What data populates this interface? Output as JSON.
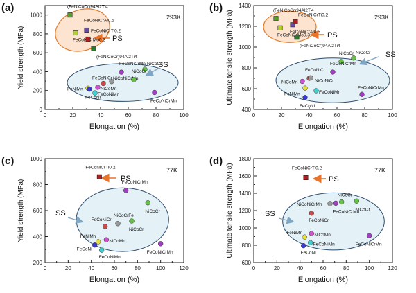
{
  "colors": {
    "ss_fill": "#e4f2f8",
    "ss_stroke": "#2c4a6a",
    "ps_fill": "#fde4d0",
    "ps_stroke": "#e07a2a",
    "arrow": "#e8732a",
    "ss_arrow": "#7fa6c2"
  },
  "chart_data": [
    {
      "panel": "(a)",
      "type": "scatter",
      "temperature": "293K",
      "xlabel": "Elongation (%)",
      "ylabel": "Yield strength (MPa)",
      "xlim": [
        0,
        100
      ],
      "ylim": [
        0,
        1100
      ],
      "xticks": [
        "0",
        "20",
        "40",
        "60",
        "80",
        "100"
      ],
      "yticks": [
        "0",
        "200",
        "400",
        "600",
        "800",
        "1000"
      ],
      "ps_label": "PS",
      "ss_label": "SS",
      "ps_ellipse": {
        "cx": 27,
        "cy": 840,
        "rx": 20,
        "ry": 215,
        "rotate": 18
      },
      "ss_ellipse": {
        "cx": 56,
        "cy": 285,
        "rx": 40,
        "ry": 200
      },
      "points": [
        {
          "x": 18,
          "y": 1000,
          "label": "(FeNiCoCr)94Al2Ti4",
          "label_dx": -4,
          "label_dy": -10,
          "marker": "square",
          "color": "#5aa02c"
        },
        {
          "x": 22,
          "y": 810,
          "label": "FeCoNiCrMo0.3",
          "label_dx": -4,
          "label_dy": 12,
          "marker": "square",
          "color": "#b5d22a"
        },
        {
          "x": 30,
          "y": 840,
          "label": "FeCoNiCrAl0.5",
          "label_dx": -4,
          "label_dy": -12,
          "marker": "square",
          "color": "#6a4aa8"
        },
        {
          "x": 31,
          "y": 745,
          "label": "FeCoNiCrTi0.2",
          "label_dx": 4,
          "label_dy": -10,
          "marker": "square",
          "color": "#b02020"
        },
        {
          "x": 35,
          "y": 645,
          "label": "(FeNiCoCr)94Al2Ti4",
          "label_dx": 4,
          "label_dy": 14,
          "marker": "square",
          "color": "#2e7a2e"
        },
        {
          "x": 55,
          "y": 395,
          "label": "FeCoNiCrMn",
          "label_dx": -3,
          "label_dy": -10,
          "marker": "circle",
          "color": "#a040c0"
        },
        {
          "x": 72,
          "y": 425,
          "label": "NiCoCr",
          "label_dx": 3,
          "label_dy": -6,
          "marker": "circle",
          "color": "#66c244"
        },
        {
          "x": 42,
          "y": 275,
          "label": "FeCoNiCr",
          "label_dx": -16,
          "label_dy": -6,
          "marker": "circle",
          "color": "#cc4a4a"
        },
        {
          "x": 48,
          "y": 295,
          "label": "NiCoNiCrMn",
          "label_dx": 2,
          "label_dy": -3,
          "marker": "circle",
          "color": "#9a9a9a"
        },
        {
          "x": 64,
          "y": 315,
          "label": "NiCoCr",
          "label_dx": -3,
          "label_dy": -10,
          "marker": "circle",
          "color": "#66c244"
        },
        {
          "x": 38,
          "y": 235,
          "label": "NiCoMn",
          "label_dx": 4,
          "label_dy": 4,
          "marker": "circle",
          "color": "#d050d0"
        },
        {
          "x": 31,
          "y": 225,
          "label": "FeNiMn",
          "label_dx": -30,
          "label_dy": 3,
          "marker": "circle",
          "color": "#e8e040"
        },
        {
          "x": 32,
          "y": 215,
          "label": "FeCoNi",
          "label_dx": -6,
          "label_dy": 14,
          "marker": "circle",
          "color": "#3a3ad0"
        },
        {
          "x": 36,
          "y": 175,
          "label": "FeCoNiMn",
          "label_dx": 4,
          "label_dy": 4,
          "marker": "circle",
          "color": "#40d0d0"
        },
        {
          "x": 79,
          "y": 180,
          "label": "FeCoNiCrMn",
          "label_dx": -6,
          "label_dy": 14,
          "marker": "circle",
          "color": "#a040c0"
        }
      ]
    },
    {
      "panel": "(b)",
      "type": "scatter",
      "temperature": "293K",
      "xlabel": "Elongation (%)",
      "ylabel": "Ultimate tensile strength (MPa)",
      "xlim": [
        0,
        100
      ],
      "ylim": [
        400,
        1400
      ],
      "xticks": [
        "0",
        "20",
        "40",
        "60",
        "80",
        "100"
      ],
      "yticks": [
        "400",
        "600",
        "800",
        "1000",
        "1200",
        "1400"
      ],
      "ps_label": "PS",
      "ss_label": "SS",
      "ps_ellipse": {
        "cx": 26,
        "cy": 1195,
        "rx": 19,
        "ry": 150,
        "rotate": 0
      },
      "ss_ellipse": {
        "cx": 57,
        "cy": 680,
        "rx": 41,
        "ry": 215
      },
      "points": [
        {
          "x": 16,
          "y": 1275,
          "label": "(FeNiCoCr)94Al2Ti4",
          "label_dx": -4,
          "label_dy": -10,
          "marker": "square",
          "color": "#5aa02c"
        },
        {
          "x": 19,
          "y": 1185,
          "label": "FeCoNiCrMo0.3",
          "label_dx": -4,
          "label_dy": 12,
          "marker": "square",
          "color": "#b5d22a"
        },
        {
          "x": 28,
          "y": 1215,
          "label": "FeCoNiCrAl0.5",
          "label_dx": -4,
          "label_dy": 12,
          "marker": "square",
          "color": "#6a4aa8"
        },
        {
          "x": 30,
          "y": 1245,
          "label": "FeCoNiCrTi0.2",
          "label_dx": 4,
          "label_dy": -8,
          "marker": "square",
          "color": "#b02020"
        },
        {
          "x": 31,
          "y": 1095,
          "label": "(FeNiCoCr)94Al2Ti4",
          "label_dx": 4,
          "label_dy": 14,
          "marker": "square",
          "color": "#2e7a2e"
        },
        {
          "x": 72,
          "y": 895,
          "label": "NiCoCr",
          "label_dx": 3,
          "label_dy": -6,
          "marker": "circle",
          "color": "#66c244"
        },
        {
          "x": 63,
          "y": 860,
          "label": "NiCoCr",
          "label_dx": -3,
          "label_dy": -10,
          "marker": "circle",
          "color": "#66c244"
        },
        {
          "x": 57,
          "y": 760,
          "label": "FeCoNiCrMn",
          "label_dx": -4,
          "label_dy": -10,
          "marker": "circle",
          "color": "#a040c0"
        },
        {
          "x": 40,
          "y": 700,
          "label": "FeCoNiCr",
          "label_dx": -6,
          "label_dy": -10,
          "marker": "circle",
          "color": "#cc4a4a"
        },
        {
          "x": 41,
          "y": 705,
          "label": "NiCoNiCr",
          "label_dx": 6,
          "label_dy": 6,
          "marker": "circle",
          "color": "#9a9a9a"
        },
        {
          "x": 35,
          "y": 670,
          "label": "NiCoMn",
          "label_dx": -30,
          "label_dy": 3,
          "marker": "circle",
          "color": "#d050d0"
        },
        {
          "x": 37,
          "y": 605,
          "label": "FeNiMn",
          "label_dx": -30,
          "label_dy": 10,
          "marker": "circle",
          "color": "#e8e040"
        },
        {
          "x": 45,
          "y": 580,
          "label": "FeCoNiMn",
          "label_dx": 4,
          "label_dy": 4,
          "marker": "circle",
          "color": "#40d0d0"
        },
        {
          "x": 37,
          "y": 515,
          "label": "FeCoNi",
          "label_dx": -8,
          "label_dy": 14,
          "marker": "circle",
          "color": "#3a3ad0"
        },
        {
          "x": 78,
          "y": 545,
          "label": "FeCoNiCrMn",
          "label_dx": -6,
          "label_dy": -8,
          "marker": "circle",
          "color": "#a040c0"
        }
      ]
    },
    {
      "panel": "(c)",
      "type": "scatter",
      "temperature": "77K",
      "xlabel": "Elongation (%)",
      "ylabel": "Yield strength (MPa)",
      "xlim": [
        0,
        120
      ],
      "ylim": [
        200,
        1000
      ],
      "xticks": [
        "0",
        "20",
        "40",
        "60",
        "80",
        "100",
        "120"
      ],
      "yticks": [
        "200",
        "400",
        "600",
        "800",
        "1000"
      ],
      "ps_label": "PS",
      "ss_label": "SS",
      "ps_ellipse": null,
      "ss_ellipse": {
        "cx": 67,
        "cy": 530,
        "rx": 40,
        "ry": 245
      },
      "points": [
        {
          "x": 47,
          "y": 860,
          "label": "FeCoNiCrTi0.2",
          "label_dx": -20,
          "label_dy": -12,
          "marker": "square",
          "color": "#b02020"
        },
        {
          "x": 70,
          "y": 755,
          "label": "FeCoNiCrMn",
          "label_dx": -6,
          "label_dy": -10,
          "marker": "circle",
          "color": "#a040c0"
        },
        {
          "x": 89,
          "y": 660,
          "label": "NiCoCr",
          "label_dx": -4,
          "label_dy": 14,
          "marker": "circle",
          "color": "#66c244"
        },
        {
          "x": 75,
          "y": 520,
          "label": "NiCoCr",
          "label_dx": -4,
          "label_dy": 14,
          "marker": "circle",
          "color": "#66c244"
        },
        {
          "x": 63,
          "y": 500,
          "label": "NiCoCrFe",
          "label_dx": -6,
          "label_dy": -10,
          "marker": "circle",
          "color": "#9a9a9a"
        },
        {
          "x": 52,
          "y": 478,
          "label": "FeCoNiCr",
          "label_dx": -20,
          "label_dy": -8,
          "marker": "circle",
          "color": "#cc4a4a"
        },
        {
          "x": 53,
          "y": 375,
          "label": "NiCoMn",
          "label_dx": 4,
          "label_dy": 4,
          "marker": "circle",
          "color": "#d050d0"
        },
        {
          "x": 46,
          "y": 360,
          "label": "FeNiMn",
          "label_dx": -26,
          "label_dy": -6,
          "marker": "circle",
          "color": "#e8e040"
        },
        {
          "x": 43,
          "y": 335,
          "label": "FeCoNi",
          "label_dx": -26,
          "label_dy": 8,
          "marker": "circle",
          "color": "#3a3ad0"
        },
        {
          "x": 49,
          "y": 295,
          "label": "FeCoNiMn",
          "label_dx": -4,
          "label_dy": 12,
          "marker": "circle",
          "color": "#40d0d0"
        },
        {
          "x": 100,
          "y": 345,
          "label": "FeCoNiCrMn",
          "label_dx": -20,
          "label_dy": 14,
          "marker": "circle",
          "color": "#a040c0"
        }
      ]
    },
    {
      "panel": "(d)",
      "type": "scatter",
      "temperature": "77K",
      "xlabel": "Elongation (%)",
      "ylabel": "Ultimate tensile strength (MPa)",
      "xlim": [
        0,
        120
      ],
      "ylim": [
        600,
        1800
      ],
      "xticks": [
        "0",
        "20",
        "40",
        "60",
        "80",
        "100",
        "120"
      ],
      "yticks": [
        "600",
        "800",
        "1000",
        "1200",
        "1400",
        "1600",
        "1800"
      ],
      "ps_label": "PS",
      "ss_label": "SS",
      "ps_ellipse": null,
      "ss_ellipse": {
        "cx": 69,
        "cy": 1075,
        "rx": 44,
        "ry": 330
      },
      "points": [
        {
          "x": 45,
          "y": 1580,
          "label": "FeCoNiCrTi0.2",
          "label_dx": -20,
          "label_dy": -12,
          "marker": "square",
          "color": "#b02020"
        },
        {
          "x": 76,
          "y": 1300,
          "label": "NiCoCr",
          "label_dx": -6,
          "label_dy": -8,
          "marker": "circle",
          "color": "#66c244"
        },
        {
          "x": 89,
          "y": 1310,
          "label": "NiCoCr",
          "label_dx": -2,
          "label_dy": 14,
          "marker": "circle",
          "color": "#66c244"
        },
        {
          "x": 66,
          "y": 1280,
          "label": "NiCoNiCrMn",
          "label_dx": -48,
          "label_dy": 3,
          "marker": "circle",
          "color": "#9a9a9a"
        },
        {
          "x": 71,
          "y": 1285,
          "label": "FeCoNiCrMn",
          "label_dx": -4,
          "label_dy": 14,
          "marker": "circle",
          "color": "#a040c0"
        },
        {
          "x": 50,
          "y": 1170,
          "label": "FeCoNiCr",
          "label_dx": -4,
          "label_dy": 12,
          "marker": "circle",
          "color": "#cc4a4a"
        },
        {
          "x": 50,
          "y": 935,
          "label": "NiCoMn",
          "label_dx": 4,
          "label_dy": 4,
          "marker": "circle",
          "color": "#d050d0"
        },
        {
          "x": 44,
          "y": 895,
          "label": "FeNiMn",
          "label_dx": -26,
          "label_dy": -4,
          "marker": "circle",
          "color": "#e8e040"
        },
        {
          "x": 49,
          "y": 830,
          "label": "FeCoNiMn",
          "label_dx": 4,
          "label_dy": 4,
          "marker": "circle",
          "color": "#40d0d0"
        },
        {
          "x": 43,
          "y": 795,
          "label": "FeCoNi",
          "label_dx": -4,
          "label_dy": 12,
          "marker": "circle",
          "color": "#3a3ad0"
        },
        {
          "x": 100,
          "y": 910,
          "label": "FeCoNiCrMn",
          "label_dx": -20,
          "label_dy": 14,
          "marker": "circle",
          "color": "#a040c0"
        }
      ]
    }
  ]
}
